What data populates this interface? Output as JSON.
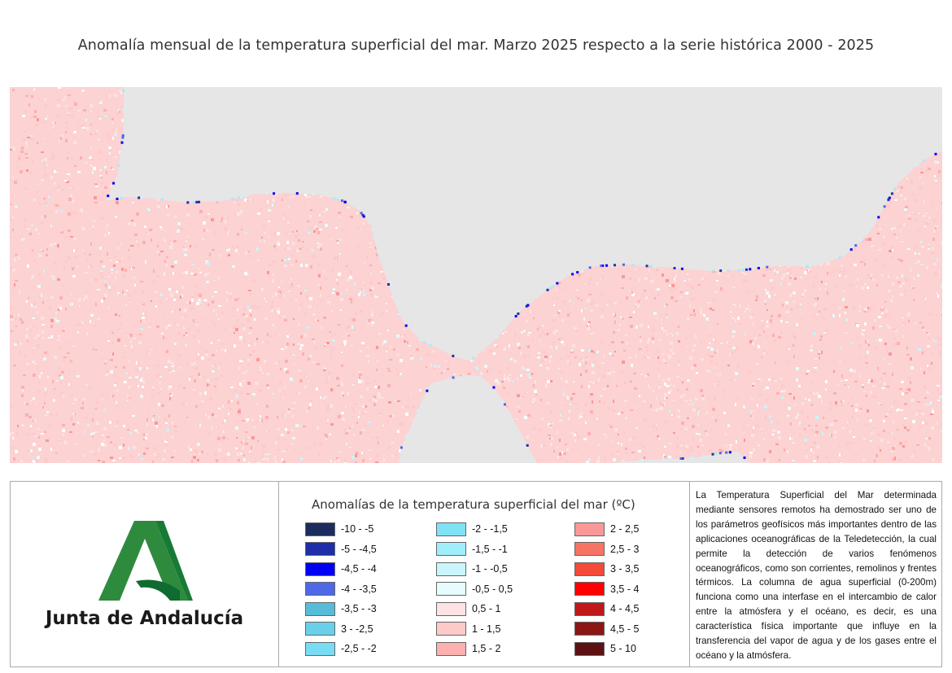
{
  "title": "Anomalía mensual de la temperatura superficial del mar. Marzo 2025 respecto a la serie histórica 2000 - 2025",
  "map": {
    "land_color": "#e6e6e6",
    "sea_base_color": "#fcd2d2"
  },
  "logo": {
    "text": "Junta de Andalucía",
    "icon": "junta-andalucia-logo",
    "colors": [
      "#2e8b3e",
      "#0f7a3a"
    ]
  },
  "legend": {
    "title": "Anomalías de la temperatura superficial del mar (ºC)",
    "columns": [
      [
        {
          "label": "-10 - -5",
          "color": "#1c2c5e"
        },
        {
          "label": "-5 - -4,5",
          "color": "#1f2fa8"
        },
        {
          "label": "-4,5 - -4",
          "color": "#0000f5"
        },
        {
          "label": "-4 - -3,5",
          "color": "#4f68e8"
        },
        {
          "label": "-3,5 - -3",
          "color": "#56bcd8"
        },
        {
          "label": "3 - -2,5",
          "color": "#6ad0ea"
        },
        {
          "label": "-2,5 - -2",
          "color": "#78dcf2"
        }
      ],
      [
        {
          "label": "-2 - -1,5",
          "color": "#7fe2f5"
        },
        {
          "label": "-1,5 - -1",
          "color": "#a0eef9"
        },
        {
          "label": "-1 - -0,5",
          "color": "#c8f6fb"
        },
        {
          "label": "-0,5 - 0,5",
          "color": "#e6fcfd"
        },
        {
          "label": "0,5 - 1",
          "color": "#fde3e3"
        },
        {
          "label": "1 - 1,5",
          "color": "#fdcaca"
        },
        {
          "label": "1,5 - 2",
          "color": "#fcb0b0"
        }
      ],
      [
        {
          "label": "2 - 2,5",
          "color": "#f99898"
        },
        {
          "label": "2,5 - 3",
          "color": "#f77464"
        },
        {
          "label": "3 - 3,5",
          "color": "#f44a3a"
        },
        {
          "label": "3,5 - 4",
          "color": "#ff0000"
        },
        {
          "label": "4 - 4,5",
          "color": "#c01818"
        },
        {
          "label": "4,5 - 5",
          "color": "#8c1616"
        },
        {
          "label": "5 - 10",
          "color": "#5c1212"
        }
      ]
    ]
  },
  "description": "La Temperatura Superficial del Mar determinada mediante sensores remotos ha demostrado ser uno de los parámetros geofísicos más importantes dentro de las aplicaciones oceanográficas de la Teledetección, la cual permite la detección de varios fenómenos oceanográficos, como son corrientes, remolinos y frentes térmicos. La columna de agua superficial (0-200m) funciona como una interfase en el intercambio de calor entre la atmósfera y el océano, es decir, es una característica física importante que influye en la transferencia del vapor de agua y de los gases entre el océano y la atmósfera."
}
